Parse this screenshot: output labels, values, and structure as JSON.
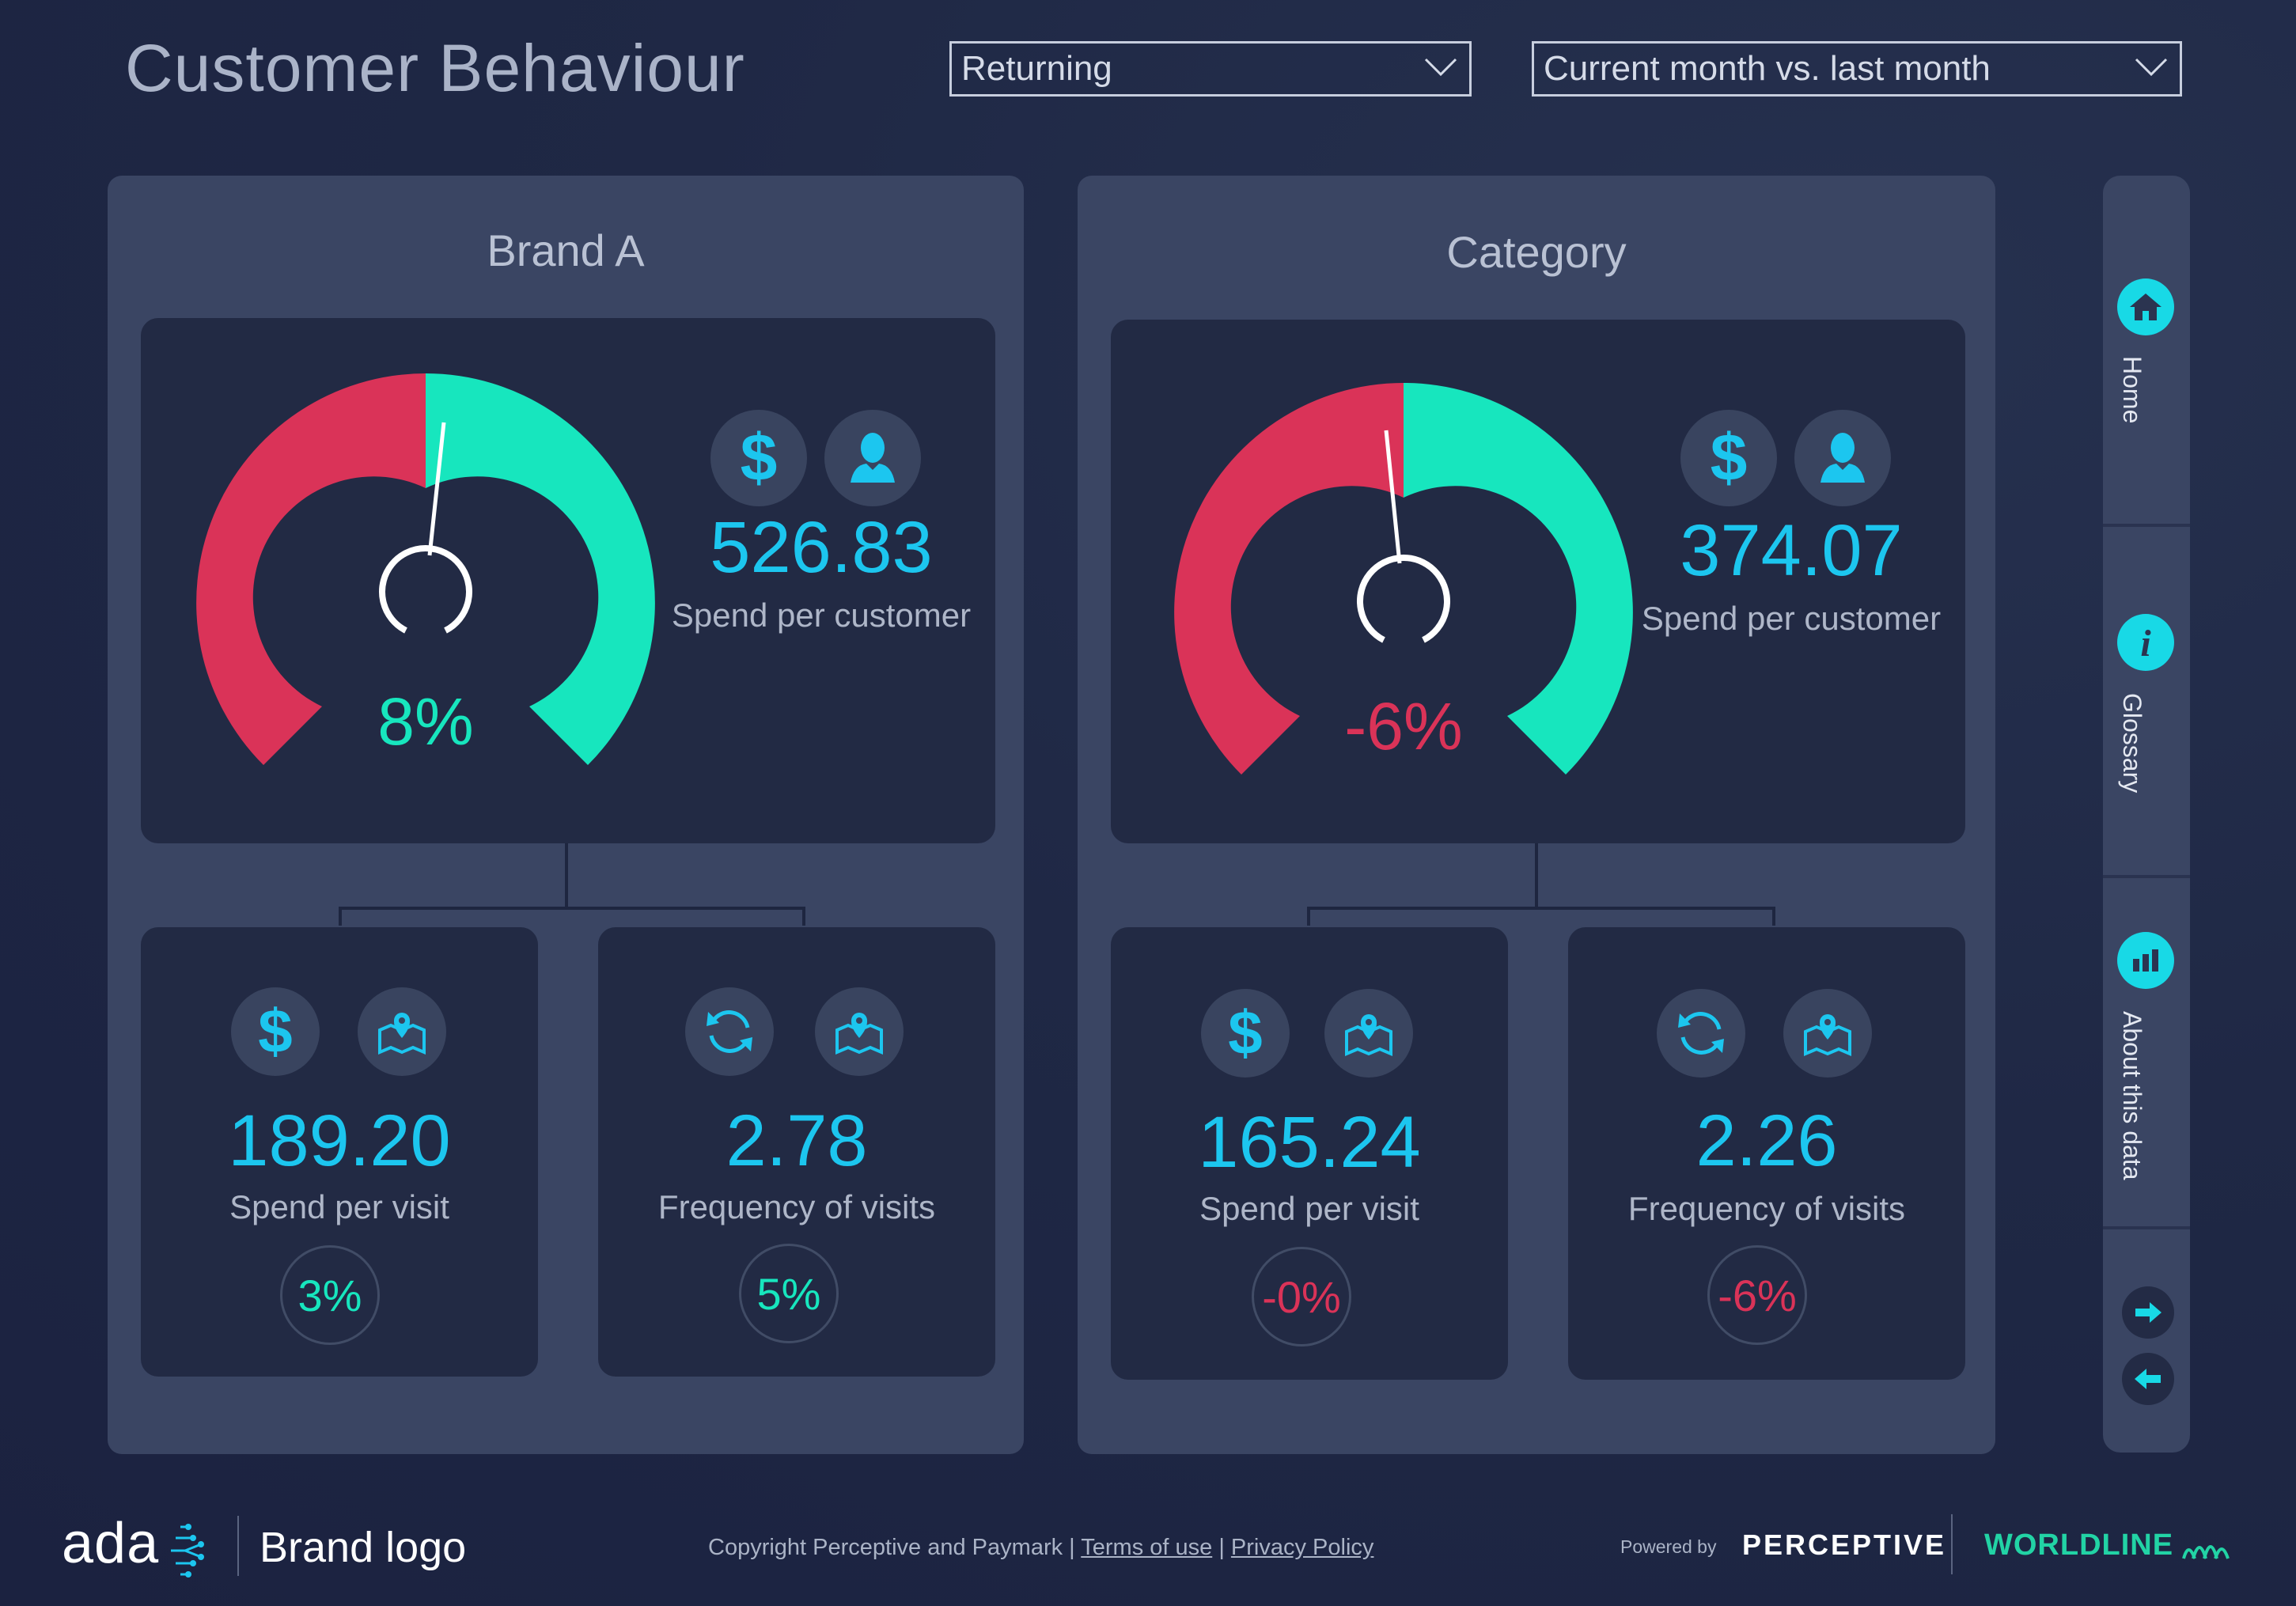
{
  "header": {
    "title": "Customer Behaviour",
    "customer_filter": "Returning",
    "period_filter": "Current month vs. last month"
  },
  "colors": {
    "accent": "#1cc6ef",
    "positive": "#17e6be",
    "negative": "#da3358",
    "panel": "#3a4563",
    "card": "#222a44"
  },
  "panels": [
    {
      "title": "Brand A",
      "gauge": {
        "pct": "8%",
        "change": 8,
        "trend": "positive"
      },
      "main": {
        "value": "526.83",
        "label": "Spend per customer",
        "icons": [
          "dollar-icon",
          "user-icon"
        ]
      },
      "metrics": [
        {
          "value": "189.20",
          "label": "Spend per visit",
          "change": "3%",
          "trend": "positive",
          "icons": [
            "dollar-icon",
            "map-pin-icon"
          ]
        },
        {
          "value": "2.78",
          "label": "Frequency of visits",
          "change": "5%",
          "trend": "positive",
          "icons": [
            "refresh-icon",
            "map-pin-icon"
          ]
        }
      ]
    },
    {
      "title": "Category",
      "gauge": {
        "pct": "-6%",
        "change": -6,
        "trend": "negative"
      },
      "main": {
        "value": "374.07",
        "label": "Spend per customer",
        "icons": [
          "dollar-icon",
          "user-icon"
        ]
      },
      "metrics": [
        {
          "value": "165.24",
          "label": "Spend per visit",
          "change": "-0%",
          "trend": "negative",
          "icons": [
            "dollar-icon",
            "map-pin-icon"
          ]
        },
        {
          "value": "2.26",
          "label": "Frequency of visits",
          "change": "-6%",
          "trend": "negative",
          "icons": [
            "refresh-icon",
            "map-pin-icon"
          ]
        }
      ]
    }
  ],
  "sidebar": {
    "items": [
      {
        "label": "Home",
        "icon": "home-icon"
      },
      {
        "label": "Glossary",
        "icon": "info-icon"
      },
      {
        "label": "About this data",
        "icon": "bar-chart-icon"
      }
    ],
    "next_icon": "arrow-right-icon",
    "prev_icon": "arrow-left-icon"
  },
  "footer": {
    "logo_text": "ada",
    "brand_logo": "Brand logo",
    "copyright": "Copyright Perceptive and Paymark |",
    "terms": "Terms of use",
    "divider": "|",
    "privacy": "Privacy Policy",
    "powered_by": "Powered by",
    "perceptive": "PERCEPTIVE",
    "worldline": "WORLDLINE"
  }
}
